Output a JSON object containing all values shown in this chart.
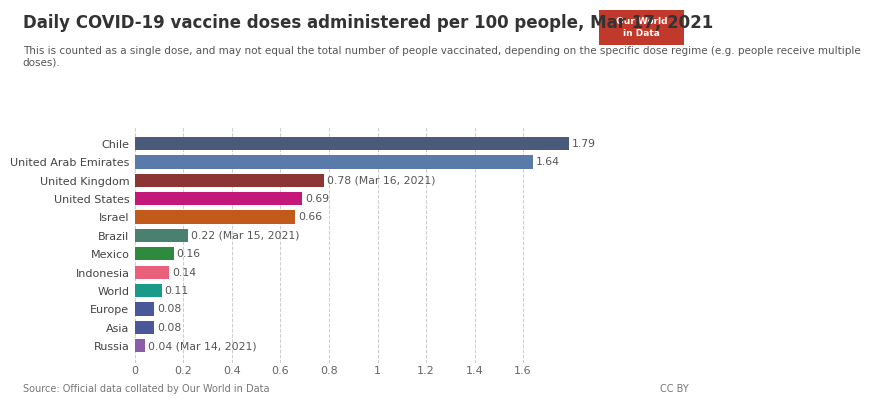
{
  "title": "Daily COVID-19 vaccine doses administered per 100 people, Mar 17, 2021",
  "subtitle": "This is counted as a single dose, and may not equal the total number of people vaccinated, depending on the specific dose regime (e.g. people receive multiple\ndoses).",
  "source": "Source: Official data collated by Our World in Data",
  "countries": [
    "Russia",
    "Asia",
    "Europe",
    "World",
    "Indonesia",
    "Mexico",
    "Brazil",
    "Israel",
    "United States",
    "United Kingdom",
    "United Arab Emirates",
    "Chile"
  ],
  "values": [
    0.04,
    0.08,
    0.08,
    0.11,
    0.14,
    0.16,
    0.22,
    0.66,
    0.69,
    0.78,
    1.64,
    1.79
  ],
  "colors": [
    "#8b5ca8",
    "#4a5899",
    "#4a5899",
    "#1a9b8a",
    "#e8607a",
    "#2e8b3e",
    "#4a8070",
    "#c25a1a",
    "#c4177a",
    "#8b3535",
    "#5a7aaa",
    "#4a5a7a"
  ],
  "labels": [
    "0.04 (Mar 14, 2021)",
    "0.08",
    "0.08",
    "0.11",
    "0.14",
    "0.16",
    "0.22 (Mar 15, 2021)",
    "0.66",
    "0.69",
    "0.78 (Mar 16, 2021)",
    "1.64",
    "1.79"
  ],
  "xlim": [
    0,
    1.85
  ],
  "xticks": [
    0,
    0.2,
    0.4,
    0.6,
    0.8,
    1.0,
    1.2,
    1.4,
    1.6
  ],
  "xtick_labels": [
    "0",
    "0.2",
    "0.4",
    "0.6",
    "0.8",
    "1",
    "1.2",
    "1.4",
    "1.6"
  ],
  "bg_color": "#ffffff",
  "grid_color": "#cccccc",
  "bar_height": 0.72,
  "title_fontsize": 12,
  "subtitle_fontsize": 7.5,
  "label_fontsize": 7.8,
  "ytick_fontsize": 8,
  "xtick_fontsize": 8,
  "source_fontsize": 7,
  "logo_color": "#c0392b",
  "logo_text_color": "#ffffff",
  "title_color": "#333333",
  "subtitle_color": "#555555",
  "grid_linestyle": "--"
}
